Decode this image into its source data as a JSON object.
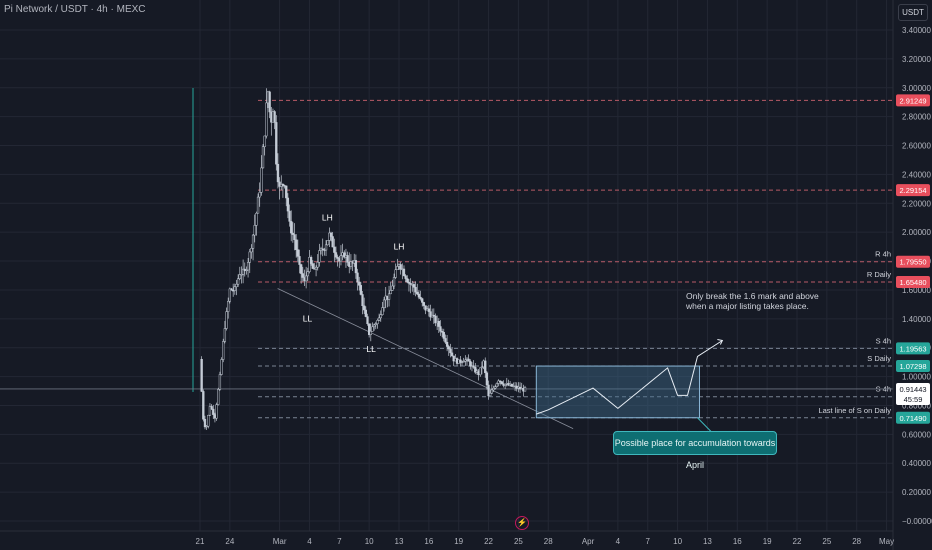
{
  "header": {
    "title": "Pi Network / USDT · 4h · MEXC",
    "unit_button": "USDT"
  },
  "colors": {
    "background": "#161a25",
    "grid": "#232734",
    "axis_text": "#b2b5be",
    "candle": "#c5ccd6",
    "resistance_tag": "#e84f5d",
    "support_tag": "#26a69a",
    "current_tag": "#ffffff",
    "zone_fill": "#3d6a8a",
    "zone_border": "#8ab6d6",
    "callout_bg": "#0e6e72"
  },
  "icons": {
    "alert": "lightning-icon"
  },
  "chart_data": {
    "type": "candlestick",
    "y_axis": {
      "min": 0,
      "max": 3.4,
      "scale": "linear",
      "tick_labels": [
        "3.40000",
        "3.20000",
        "3.00000",
        "2.80000",
        "2.60000",
        "2.40000",
        "2.20000",
        "2.00000",
        "1.80000",
        "1.60000",
        "1.40000",
        "1.20000",
        "1.00000",
        "0.80000",
        "0.60000",
        "0.40000",
        "0.20000",
        "−0.00000"
      ],
      "tick_values": [
        3.4,
        3.2,
        3.0,
        2.8,
        2.6,
        2.4,
        2.2,
        2.0,
        1.8,
        1.6,
        1.4,
        1.2,
        1.0,
        0.8,
        0.6,
        0.4,
        0.2,
        0.0
      ]
    },
    "x_axis": {
      "tick_labels": [
        "21",
        "24",
        "Mar",
        "4",
        "7",
        "10",
        "13",
        "16",
        "19",
        "22",
        "25",
        "28",
        "Apr",
        "4",
        "7",
        "10",
        "13",
        "16",
        "19",
        "22",
        "25",
        "28",
        "May"
      ],
      "tick_day_index": [
        0,
        3,
        8,
        11,
        14,
        17,
        20,
        23,
        26,
        29,
        32,
        35,
        39,
        42,
        45,
        48,
        51,
        54,
        57,
        60,
        63,
        66,
        69
      ]
    },
    "price_path": [
      [
        0.0,
        1.12
      ],
      [
        0.3,
        0.72
      ],
      [
        0.6,
        0.63
      ],
      [
        1.0,
        0.8
      ],
      [
        1.5,
        0.72
      ],
      [
        2.0,
        1.0
      ],
      [
        2.5,
        1.35
      ],
      [
        3.0,
        1.6
      ],
      [
        3.5,
        1.6
      ],
      [
        4.0,
        1.72
      ],
      [
        4.5,
        1.72
      ],
      [
        5.0,
        1.85
      ],
      [
        5.5,
        2.05
      ],
      [
        6.0,
        2.3
      ],
      [
        6.5,
        2.7
      ],
      [
        6.8,
        3.0
      ],
      [
        7.1,
        2.75
      ],
      [
        7.4,
        2.9
      ],
      [
        7.7,
        2.45
      ],
      [
        8.0,
        2.3
      ],
      [
        8.5,
        2.35
      ],
      [
        9.0,
        2.05
      ],
      [
        9.5,
        1.95
      ],
      [
        10.0,
        1.75
      ],
      [
        10.5,
        1.65
      ],
      [
        11.0,
        1.8
      ],
      [
        11.5,
        1.72
      ],
      [
        12.0,
        1.85
      ],
      [
        12.5,
        1.9
      ],
      [
        13.0,
        1.98
      ],
      [
        13.5,
        1.88
      ],
      [
        14.0,
        1.8
      ],
      [
        14.5,
        1.85
      ],
      [
        15.0,
        1.78
      ],
      [
        15.5,
        1.78
      ],
      [
        16.0,
        1.62
      ],
      [
        16.5,
        1.45
      ],
      [
        17.0,
        1.3
      ],
      [
        17.5,
        1.36
      ],
      [
        18.0,
        1.4
      ],
      [
        18.5,
        1.55
      ],
      [
        19.0,
        1.55
      ],
      [
        19.5,
        1.68
      ],
      [
        20.0,
        1.79
      ],
      [
        20.5,
        1.72
      ],
      [
        21.0,
        1.65
      ],
      [
        21.5,
        1.62
      ],
      [
        22.0,
        1.55
      ],
      [
        22.5,
        1.48
      ],
      [
        23.0,
        1.45
      ],
      [
        23.5,
        1.4
      ],
      [
        24.0,
        1.35
      ],
      [
        24.5,
        1.28
      ],
      [
        25.0,
        1.2
      ],
      [
        25.5,
        1.12
      ],
      [
        26.0,
        1.1
      ],
      [
        26.5,
        1.12
      ],
      [
        27.0,
        1.1
      ],
      [
        27.5,
        1.05
      ],
      [
        28.0,
        1.02
      ],
      [
        28.5,
        1.1
      ],
      [
        29.0,
        0.86
      ],
      [
        29.5,
        0.92
      ],
      [
        30.0,
        0.98
      ],
      [
        30.5,
        0.95
      ],
      [
        31.0,
        0.94
      ],
      [
        31.5,
        0.93
      ],
      [
        32.0,
        0.92
      ],
      [
        32.5,
        0.91
      ],
      [
        32.8,
        0.914
      ]
    ],
    "price_note": "price_path values are approximate (day index, price) points traced from the candles",
    "current_price": {
      "value": "0.91443",
      "countdown": "45:59"
    },
    "horizontal_levels": [
      {
        "value": 2.91249,
        "label": "2.91249",
        "kind": "resistance",
        "text": ""
      },
      {
        "value": 2.29154,
        "label": "2.29154",
        "kind": "resistance",
        "text": ""
      },
      {
        "value": 1.7955,
        "label": "1.79550",
        "kind": "resistance",
        "text": "R 4h"
      },
      {
        "value": 1.6548,
        "label": "1.65480",
        "kind": "resistance",
        "text": "R Daily"
      },
      {
        "value": 1.19563,
        "label": "1.19563",
        "kind": "support",
        "text": "S 4h"
      },
      {
        "value": 1.07298,
        "label": "1.07298",
        "kind": "support",
        "text": "S Daily"
      },
      {
        "value": 0.8606,
        "label": "",
        "kind": "support",
        "text": "S 4h"
      },
      {
        "value": 0.7149,
        "label": "0.71490",
        "kind": "support",
        "text": "Last line of S on Daily"
      }
    ],
    "swing_labels": [
      {
        "text": "LH",
        "day": 12.8,
        "price": 2.08
      },
      {
        "text": "LH",
        "day": 20.0,
        "price": 1.88
      },
      {
        "text": "LL",
        "day": 10.8,
        "price": 1.38
      },
      {
        "text": "LL",
        "day": 17.2,
        "price": 1.17
      }
    ],
    "trendline": {
      "from": [
        7.8,
        1.61
      ],
      "to": [
        37.5,
        0.64
      ]
    },
    "accumulation_zone": {
      "day_from": 33.8,
      "day_to": 50.2,
      "price_low": 0.7149,
      "price_high": 1.07298
    },
    "projection_path": [
      [
        33.8,
        0.74
      ],
      [
        35.0,
        0.77
      ],
      [
        39.5,
        0.92
      ],
      [
        42.0,
        0.78
      ],
      [
        47.0,
        1.06
      ],
      [
        48.0,
        0.87
      ],
      [
        49.0,
        0.87
      ],
      [
        50.0,
        1.14
      ],
      [
        52.5,
        1.25
      ]
    ],
    "annotations": {
      "callout": "Possible place for accumulation towards April",
      "note_line1": "Only break the 1.6 mark and above",
      "note_line2": "when a major listing takes place."
    }
  }
}
